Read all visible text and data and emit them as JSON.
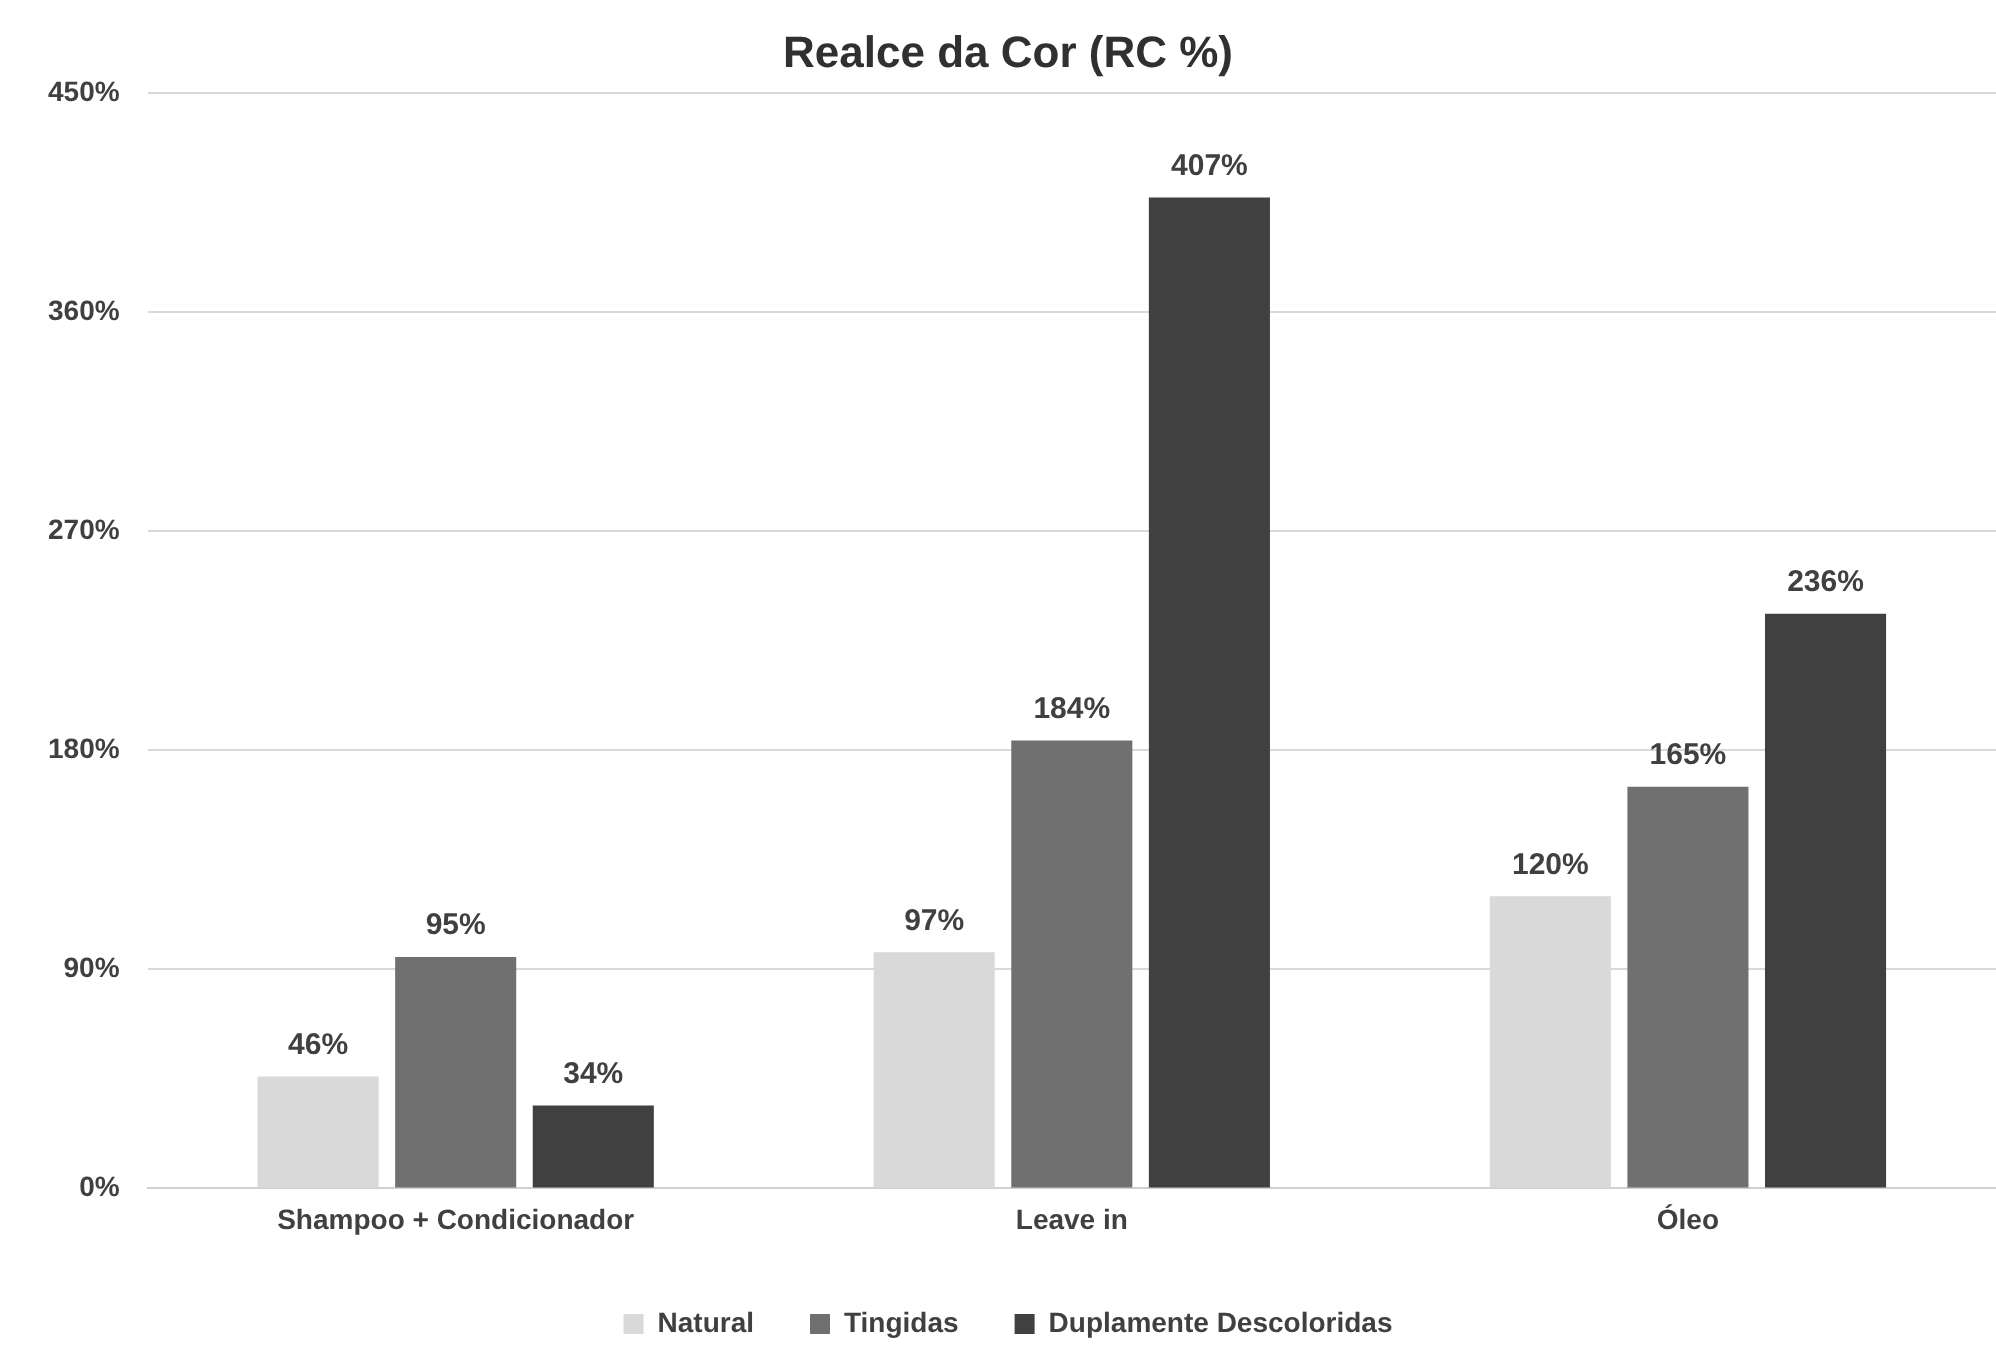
{
  "chart_data": {
    "type": "bar",
    "title": "Realce da Cor (RC %)",
    "categories": [
      "Shampoo + Condicionador",
      "Leave in",
      "Óleo"
    ],
    "series": [
      {
        "name": "Natural",
        "color": "#d9d9d9",
        "values": [
          46,
          97,
          120
        ],
        "value_labels": [
          "46%",
          "97%",
          "120%"
        ]
      },
      {
        "name": "Tingidas",
        "color": "#707070",
        "values": [
          95,
          184,
          165
        ],
        "value_labels": [
          "95%",
          "184%",
          "165%"
        ]
      },
      {
        "name": "Duplamente Descoloridas",
        "color": "#404040",
        "values": [
          34,
          407,
          236
        ],
        "value_labels": [
          "34%",
          "407%",
          "236%"
        ]
      }
    ],
    "ylim": [
      0,
      450
    ],
    "yticks": [
      {
        "value": 0,
        "label": "0%"
      },
      {
        "value": 90,
        "label": "90%"
      },
      {
        "value": 180,
        "label": "180%"
      },
      {
        "value": 270,
        "label": "270%"
      },
      {
        "value": 360,
        "label": "360%"
      },
      {
        "value": 450,
        "label": "450%"
      }
    ],
    "grid": "y",
    "legend": "bottom"
  }
}
